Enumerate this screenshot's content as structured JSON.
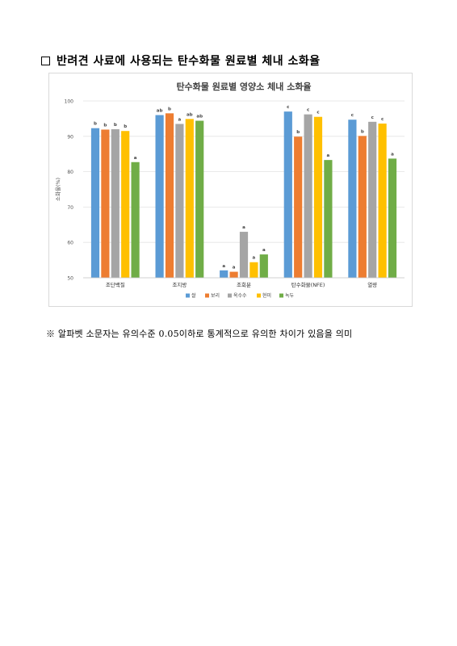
{
  "heading": {
    "text": "반려견 사료에 사용되는 탄수화물 원료별 체내 소화율"
  },
  "note": {
    "text": "※ 알파벳 소문자는 유의수준 0.05이하로 통계적으로 유의한 차이가 있음을 의미"
  },
  "chart_data": {
    "type": "bar",
    "title": "탄수화물 원료별 영양소 체내 소화율",
    "ylabel": "소화율(%)",
    "xlabel": "",
    "ylim": [
      50,
      100
    ],
    "yticks": [
      50,
      60,
      70,
      80,
      90,
      100
    ],
    "grid": true,
    "legend_position": "bottom",
    "categories": [
      "조단백질",
      "조지방",
      "조회분",
      "탄수화물(NFE)",
      "열량"
    ],
    "series": [
      {
        "name": "쌀",
        "color": "#5b9bd5",
        "values": [
          92.3,
          96.0,
          52.1,
          97.0,
          94.7
        ],
        "labels": [
          "b",
          "ab",
          "a",
          "c",
          "c"
        ]
      },
      {
        "name": "보리",
        "color": "#ed7d31",
        "values": [
          91.9,
          96.5,
          51.7,
          89.9,
          90.1
        ],
        "labels": [
          "b",
          "b",
          "a",
          "b",
          "b"
        ]
      },
      {
        "name": "옥수수",
        "color": "#a5a5a5",
        "values": [
          92.0,
          93.5,
          63.0,
          96.2,
          94.1
        ],
        "labels": [
          "b",
          "a",
          "a",
          "c",
          "c"
        ]
      },
      {
        "name": "현미",
        "color": "#ffc000",
        "values": [
          91.5,
          94.9,
          54.4,
          95.5,
          93.6
        ],
        "labels": [
          "b",
          "ab",
          "a",
          "c",
          "c"
        ]
      },
      {
        "name": "녹두",
        "color": "#70ad47",
        "values": [
          82.7,
          94.4,
          56.6,
          83.3,
          83.7
        ],
        "labels": [
          "a",
          "ab",
          "a",
          "a",
          "a"
        ]
      }
    ]
  }
}
